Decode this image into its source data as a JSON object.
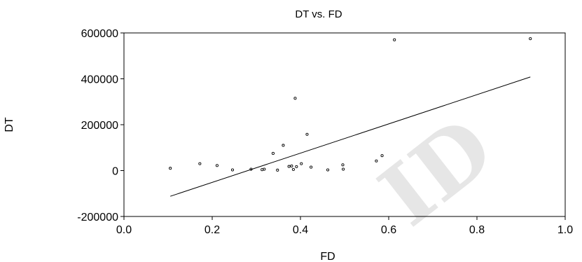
{
  "chart_data": {
    "type": "scatter",
    "title": "DT vs. FD",
    "xlabel": "FD",
    "ylabel": "DT",
    "xlim": [
      0.0,
      1.0
    ],
    "ylim": [
      -200000,
      600000
    ],
    "xticks": [
      0.0,
      0.2,
      0.4,
      0.6,
      0.8,
      1.0
    ],
    "xtick_labels": [
      "0.0",
      "0.2",
      "0.4",
      "0.6",
      "0.8",
      "1.0"
    ],
    "yticks": [
      -200000,
      0,
      200000,
      400000,
      600000
    ],
    "ytick_labels": [
      "-200000",
      "0",
      "200000",
      "400000",
      "600000"
    ],
    "grid": false,
    "points": {
      "x": [
        0.105,
        0.172,
        0.211,
        0.246,
        0.288,
        0.313,
        0.318,
        0.338,
        0.348,
        0.361,
        0.374,
        0.38,
        0.384,
        0.388,
        0.391,
        0.402,
        0.415,
        0.424,
        0.462,
        0.496,
        0.497,
        0.572,
        0.585,
        0.613,
        0.921
      ],
      "y": [
        10000,
        30000,
        22000,
        3000,
        6000,
        4000,
        6000,
        75000,
        2000,
        110000,
        18000,
        20000,
        5000,
        315000,
        17000,
        30000,
        158000,
        15000,
        3000,
        25000,
        6000,
        42000,
        65000,
        570000,
        575000
      ]
    },
    "fit_line": {
      "x": [
        0.105,
        0.921
      ],
      "y": [
        -112000,
        408000
      ]
    }
  },
  "watermark_text": "ID",
  "colors": {
    "axis": "#000000",
    "points": "#000000",
    "line": "#000000",
    "watermark": "#e6e6e6"
  }
}
